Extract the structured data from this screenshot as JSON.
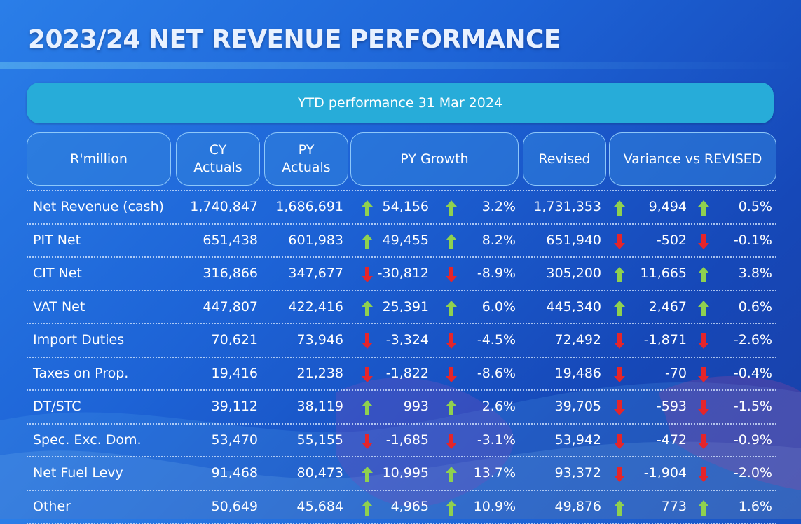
{
  "title": "2023/24 NET REVENUE PERFORMANCE",
  "banner": "YTD performance 31 Mar 2024",
  "headers": {
    "label": "R'million",
    "cy_line1": "CY",
    "cy_line2": "Actuals",
    "py_line1": "PY",
    "py_line2": "Actuals",
    "growth": "PY Growth",
    "revised": "Revised",
    "variance": "Variance vs REVISED"
  },
  "colors": {
    "up_arrow": "#8fd14f",
    "down_arrow": "#e5252a",
    "banner": "#27acd9"
  },
  "rows": [
    {
      "label": "Net Revenue (cash)",
      "cy": "1,740,847",
      "py": "1,686,691",
      "g_dir": "up",
      "g_val": "54,156",
      "g_pct_dir": "up",
      "g_pct": "3.2%",
      "revised": "1,731,353",
      "v_dir": "up",
      "v_val": "9,494",
      "v_pct_dir": "up",
      "v_pct": "0.5%"
    },
    {
      "label": "PIT Net",
      "cy": "651,438",
      "py": "601,983",
      "g_dir": "up",
      "g_val": "49,455",
      "g_pct_dir": "up",
      "g_pct": "8.2%",
      "revised": "651,940",
      "v_dir": "down",
      "v_val": "-502",
      "v_pct_dir": "down",
      "v_pct": "-0.1%"
    },
    {
      "label": "CIT Net",
      "cy": "316,866",
      "py": "347,677",
      "g_dir": "down",
      "g_val": "-30,812",
      "g_pct_dir": "down",
      "g_pct": "-8.9%",
      "revised": "305,200",
      "v_dir": "up",
      "v_val": "11,665",
      "v_pct_dir": "up",
      "v_pct": "3.8%"
    },
    {
      "label": "VAT Net",
      "cy": "447,807",
      "py": "422,416",
      "g_dir": "up",
      "g_val": "25,391",
      "g_pct_dir": "up",
      "g_pct": "6.0%",
      "revised": "445,340",
      "v_dir": "up",
      "v_val": "2,467",
      "v_pct_dir": "up",
      "v_pct": "0.6%"
    },
    {
      "label": "Import Duties",
      "cy": "70,621",
      "py": "73,946",
      "g_dir": "down",
      "g_val": "-3,324",
      "g_pct_dir": "down",
      "g_pct": "-4.5%",
      "revised": "72,492",
      "v_dir": "down",
      "v_val": "-1,871",
      "v_pct_dir": "down",
      "v_pct": "-2.6%"
    },
    {
      "label": "Taxes on Prop.",
      "cy": "19,416",
      "py": "21,238",
      "g_dir": "down",
      "g_val": "-1,822",
      "g_pct_dir": "down",
      "g_pct": "-8.6%",
      "revised": "19,486",
      "v_dir": "down",
      "v_val": "-70",
      "v_pct_dir": "down",
      "v_pct": "-0.4%"
    },
    {
      "label": "DT/STC",
      "cy": "39,112",
      "py": "38,119",
      "g_dir": "up",
      "g_val": "993",
      "g_pct_dir": "up",
      "g_pct": "2.6%",
      "revised": "39,705",
      "v_dir": "down",
      "v_val": "-593",
      "v_pct_dir": "down",
      "v_pct": "-1.5%"
    },
    {
      "label": "Spec. Exc. Dom.",
      "cy": "53,470",
      "py": "55,155",
      "g_dir": "down",
      "g_val": "-1,685",
      "g_pct_dir": "down",
      "g_pct": "-3.1%",
      "revised": "53,942",
      "v_dir": "down",
      "v_val": "-472",
      "v_pct_dir": "down",
      "v_pct": "-0.9%"
    },
    {
      "label": "Net Fuel Levy",
      "cy": "91,468",
      "py": "80,473",
      "g_dir": "up",
      "g_val": "10,995",
      "g_pct_dir": "up",
      "g_pct": "13.7%",
      "revised": "93,372",
      "v_dir": "down",
      "v_val": "-1,904",
      "v_pct_dir": "down",
      "v_pct": "-2.0%"
    },
    {
      "label": "Other",
      "cy": "50,649",
      "py": "45,684",
      "g_dir": "up",
      "g_val": "4,965",
      "g_pct_dir": "up",
      "g_pct": "10.9%",
      "revised": "49,876",
      "v_dir": "up",
      "v_val": "773",
      "v_pct_dir": "up",
      "v_pct": "1.6%"
    }
  ]
}
